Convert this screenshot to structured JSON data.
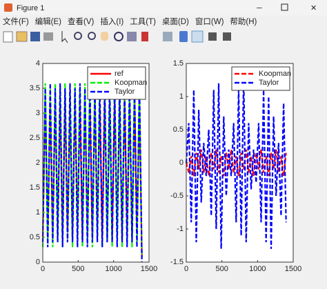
{
  "window": {
    "title": "Figure 1",
    "menu": [
      "文件(F)",
      "编辑(E)",
      "查看(V)",
      "插入(I)",
      "工具(T)",
      "桌面(D)",
      "窗口(W)",
      "帮助(H)"
    ]
  },
  "chart_data": [
    {
      "type": "line",
      "x": [
        0,
        35,
        70,
        105,
        140,
        175,
        210,
        245,
        280,
        315,
        350,
        385,
        420,
        455,
        490,
        525,
        560,
        595,
        630,
        665,
        700,
        735,
        770,
        805,
        840,
        875,
        910,
        945,
        980,
        1015,
        1050,
        1085,
        1120,
        1155,
        1190,
        1225,
        1260,
        1295,
        1330,
        1365,
        1400
      ],
      "xlim": [
        0,
        1500
      ],
      "xticks": [
        0,
        500,
        1000,
        1500
      ],
      "ylim": [
        0,
        4
      ],
      "yticks": [
        0,
        0.5,
        1,
        1.5,
        2,
        2.5,
        3,
        3.5,
        4
      ],
      "legend": "northeast",
      "series": [
        {
          "name": "ref",
          "color": "#ff0000",
          "linestyle": "solid",
          "values": [
            0.5,
            3.3,
            0.6,
            3.2,
            0.5,
            3.3,
            0.7,
            3.2,
            0.5,
            3.3,
            0.6,
            3.1,
            0.5,
            3.3,
            0.7,
            3.2,
            0.5,
            3.3,
            0.6,
            3.2,
            0.5,
            3.3,
            0.7,
            3.2,
            0.5,
            3.3,
            0.6,
            3.1,
            0.5,
            3.3,
            0.7,
            3.2,
            0.5,
            3.3,
            0.6,
            3.2,
            0.5,
            3.3,
            0.6,
            3.2,
            0.1
          ]
        },
        {
          "name": "Koopman",
          "color": "#00ee00",
          "linestyle": "dashed",
          "values": [
            0.3,
            3.6,
            0.4,
            3.5,
            0.3,
            3.6,
            0.5,
            3.5,
            0.3,
            3.6,
            0.4,
            3.4,
            0.3,
            3.6,
            0.5,
            3.5,
            0.3,
            3.6,
            0.4,
            3.5,
            0.3,
            3.6,
            0.5,
            3.5,
            0.3,
            3.6,
            0.4,
            3.4,
            0.3,
            3.6,
            0.5,
            3.5,
            0.3,
            3.6,
            0.4,
            3.5,
            0.3,
            3.6,
            0.4,
            3.5,
            0.1
          ]
        },
        {
          "name": "Taylor",
          "color": "#0000ff",
          "linestyle": "dashed",
          "values": [
            0.4,
            3.5,
            0.3,
            3.6,
            0.4,
            3.5,
            0.4,
            3.6,
            0.3,
            3.5,
            0.4,
            3.6,
            0.4,
            3.5,
            0.3,
            3.6,
            0.4,
            3.5,
            0.3,
            3.6,
            0.4,
            3.5,
            0.4,
            3.6,
            0.3,
            3.5,
            0.4,
            3.6,
            0.4,
            3.5,
            0.3,
            3.6,
            0.4,
            3.5,
            0.3,
            3.6,
            0.4,
            3.5,
            0.3,
            3.6,
            0
          ]
        }
      ]
    },
    {
      "type": "line",
      "x": [
        0,
        35,
        70,
        105,
        140,
        175,
        210,
        245,
        280,
        315,
        350,
        385,
        420,
        455,
        490,
        525,
        560,
        595,
        630,
        665,
        700,
        735,
        770,
        805,
        840,
        875,
        910,
        945,
        980,
        1015,
        1050,
        1085,
        1120,
        1155,
        1190,
        1225,
        1260,
        1295,
        1330,
        1365,
        1400
      ],
      "xlim": [
        0,
        1500
      ],
      "xticks": [
        0,
        500,
        1000,
        1500
      ],
      "ylim": [
        -1.5,
        1.5
      ],
      "yticks": [
        -1.5,
        -1,
        -0.5,
        0,
        0.5,
        1,
        1.5
      ],
      "legend": "northeast",
      "series": [
        {
          "name": "Koopman",
          "color": "#ff0000",
          "linestyle": "dashed",
          "values": [
            0,
            -0.15,
            0.1,
            -0.2,
            0.15,
            -0.1,
            0.2,
            -0.15,
            0.1,
            -0.2,
            0.15,
            -0.1,
            0.2,
            -0.15,
            0.1,
            -0.2,
            0.15,
            -0.1,
            0.2,
            -0.15,
            0.1,
            -0.2,
            0.15,
            -0.1,
            0.2,
            -0.15,
            0.1,
            -0.2,
            0.15,
            -0.1,
            0.2,
            -0.15,
            0.1,
            -0.2,
            0.15,
            -0.1,
            0.2,
            -0.15,
            0.1,
            -0.2,
            0.15
          ]
        },
        {
          "name": "Taylor",
          "color": "#0000ff",
          "linestyle": "dashed",
          "values": [
            0,
            0.6,
            -0.9,
            1.1,
            -1.2,
            0.8,
            -0.6,
            0.3,
            -0.2,
            0.5,
            -0.8,
            1.1,
            -1,
            1.2,
            -1.3,
            0.7,
            -0.5,
            0.2,
            -0.2,
            0.6,
            -0.9,
            1.1,
            -1.1,
            1.3,
            -1.2,
            0.6,
            -0.4,
            0.2,
            -0.3,
            0.6,
            -0.9,
            1.1,
            -1.2,
            1,
            -1.3,
            0.7,
            -0.5,
            0.3,
            -0.8,
            0.9,
            -0.9
          ]
        }
      ]
    }
  ]
}
